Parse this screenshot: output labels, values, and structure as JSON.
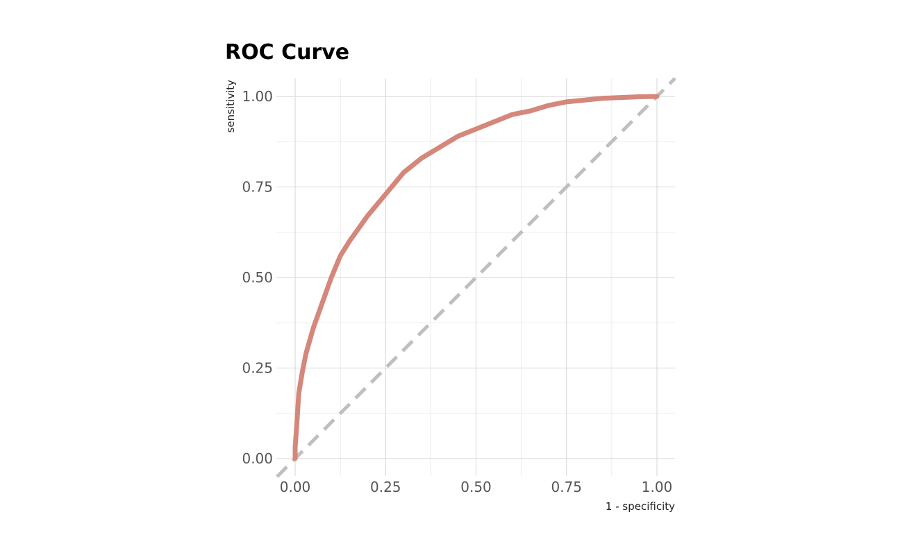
{
  "chart_data": {
    "type": "line",
    "title": "ROC Curve",
    "xlabel": "1 - specificity",
    "ylabel": "sensitivity",
    "xlim": [
      0,
      1
    ],
    "ylim": [
      0,
      1
    ],
    "x_ticks": [
      "0.00",
      "0.25",
      "0.50",
      "0.75",
      "1.00"
    ],
    "y_ticks": [
      "0.00",
      "0.25",
      "0.50",
      "0.75",
      "1.00"
    ],
    "grid": true,
    "legend": "none",
    "series": [
      {
        "color": "#d4877a",
        "x": [
          0.0,
          0.0,
          0.005,
          0.01,
          0.02,
          0.03,
          0.05,
          0.075,
          0.1,
          0.125,
          0.15,
          0.2,
          0.25,
          0.3,
          0.35,
          0.4,
          0.45,
          0.5,
          0.55,
          0.6,
          0.65,
          0.7,
          0.75,
          0.8,
          0.85,
          0.9,
          0.95,
          1.0
        ],
        "y": [
          0.0,
          0.03,
          0.1,
          0.18,
          0.24,
          0.29,
          0.36,
          0.43,
          0.5,
          0.56,
          0.6,
          0.67,
          0.73,
          0.79,
          0.83,
          0.86,
          0.89,
          0.91,
          0.93,
          0.95,
          0.96,
          0.975,
          0.985,
          0.99,
          0.995,
          0.997,
          0.999,
          1.0
        ]
      }
    ],
    "reference_line": {
      "x": [
        0,
        1
      ],
      "y": [
        0,
        1
      ],
      "color": "#bfbfbf",
      "style": "dashed"
    }
  }
}
